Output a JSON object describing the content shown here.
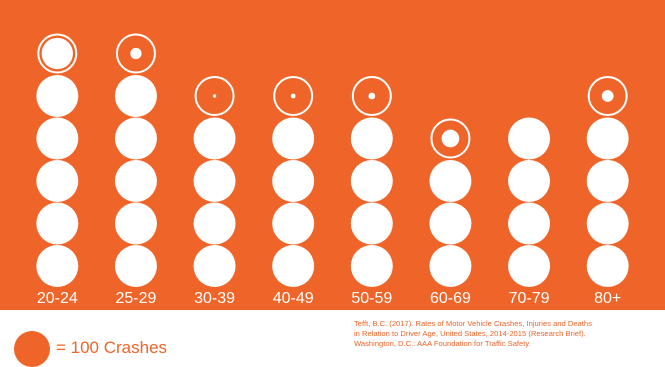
{
  "chart_data": {
    "type": "pictograph",
    "unit": 100,
    "categories": [
      "20-24",
      "25-29",
      "30-39",
      "40-49",
      "50-59",
      "60-69",
      "70-79",
      "80+"
    ],
    "values": [
      585,
      511,
      401,
      402,
      404,
      327,
      400,
      412
    ],
    "colors": {
      "background": "#ef6428",
      "icon": "#ffffff"
    }
  },
  "legend": {
    "label": "= 100 Crashes"
  },
  "citation": {
    "line1": "Tefft, B.C. (2017). Rates of Motor Vehicle Crashes, Injuries and Deaths",
    "line2": "in Relation to Driver Age, United States, 2014-2015 (Research Brief).",
    "line3": "Washington, D.C.: AAA Foundation for Traffic Safety."
  }
}
